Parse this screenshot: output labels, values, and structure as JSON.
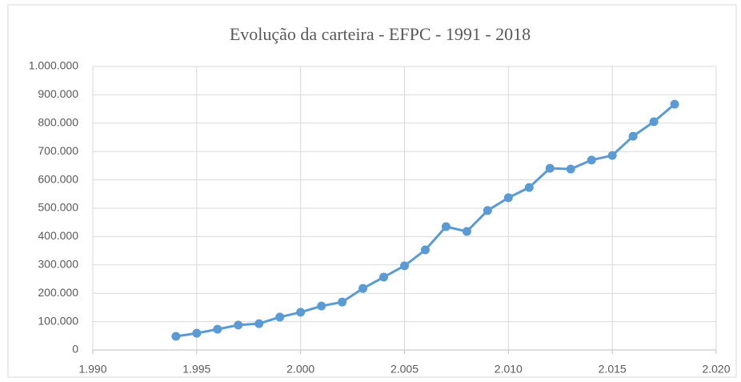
{
  "chart_data": {
    "type": "line",
    "title": "Evolução da carteira - EFPC - 1991 - 2018",
    "x": [
      1994,
      1995,
      1996,
      1997,
      1998,
      1999,
      2000,
      2001,
      2002,
      2003,
      2004,
      2005,
      2006,
      2007,
      2008,
      2009,
      2010,
      2011,
      2012,
      2013,
      2014,
      2015,
      2016,
      2017,
      2018
    ],
    "series": [
      {
        "color": "#5b9bd5",
        "values": [
          48000,
          59000,
          73000,
          88000,
          93000,
          116000,
          133000,
          155000,
          169000,
          217000,
          257000,
          297000,
          353000,
          435000,
          418000,
          492000,
          537000,
          573000,
          641000,
          638000,
          670000,
          686000,
          754000,
          805000,
          867000
        ]
      }
    ],
    "xlim": [
      1990,
      2020
    ],
    "xticks": [
      {
        "value": 1990,
        "label": "1.990"
      },
      {
        "value": 1995,
        "label": "1.995"
      },
      {
        "value": 2000,
        "label": "2.000"
      },
      {
        "value": 2005,
        "label": "2.005"
      },
      {
        "value": 2010,
        "label": "2.010"
      },
      {
        "value": 2015,
        "label": "2.015"
      },
      {
        "value": 2020,
        "label": "2.020"
      }
    ],
    "ylim": [
      0,
      1000000
    ],
    "yticks": [
      0,
      {
        "value": 100000,
        "label": "100.000"
      },
      {
        "value": 200000,
        "label": "200.000"
      },
      {
        "value": 300000,
        "label": "300.000"
      },
      {
        "value": 400000,
        "label": "400.000"
      },
      {
        "value": 500000,
        "label": "500.000"
      },
      {
        "value": 600000,
        "label": "600.000"
      },
      {
        "value": 700000,
        "label": "700.000"
      },
      {
        "value": 800000,
        "label": "800.000"
      },
      {
        "value": 900000,
        "label": "900.000"
      },
      {
        "value": 1000000,
        "label": "1.000.000"
      }
    ],
    "grid": true
  }
}
